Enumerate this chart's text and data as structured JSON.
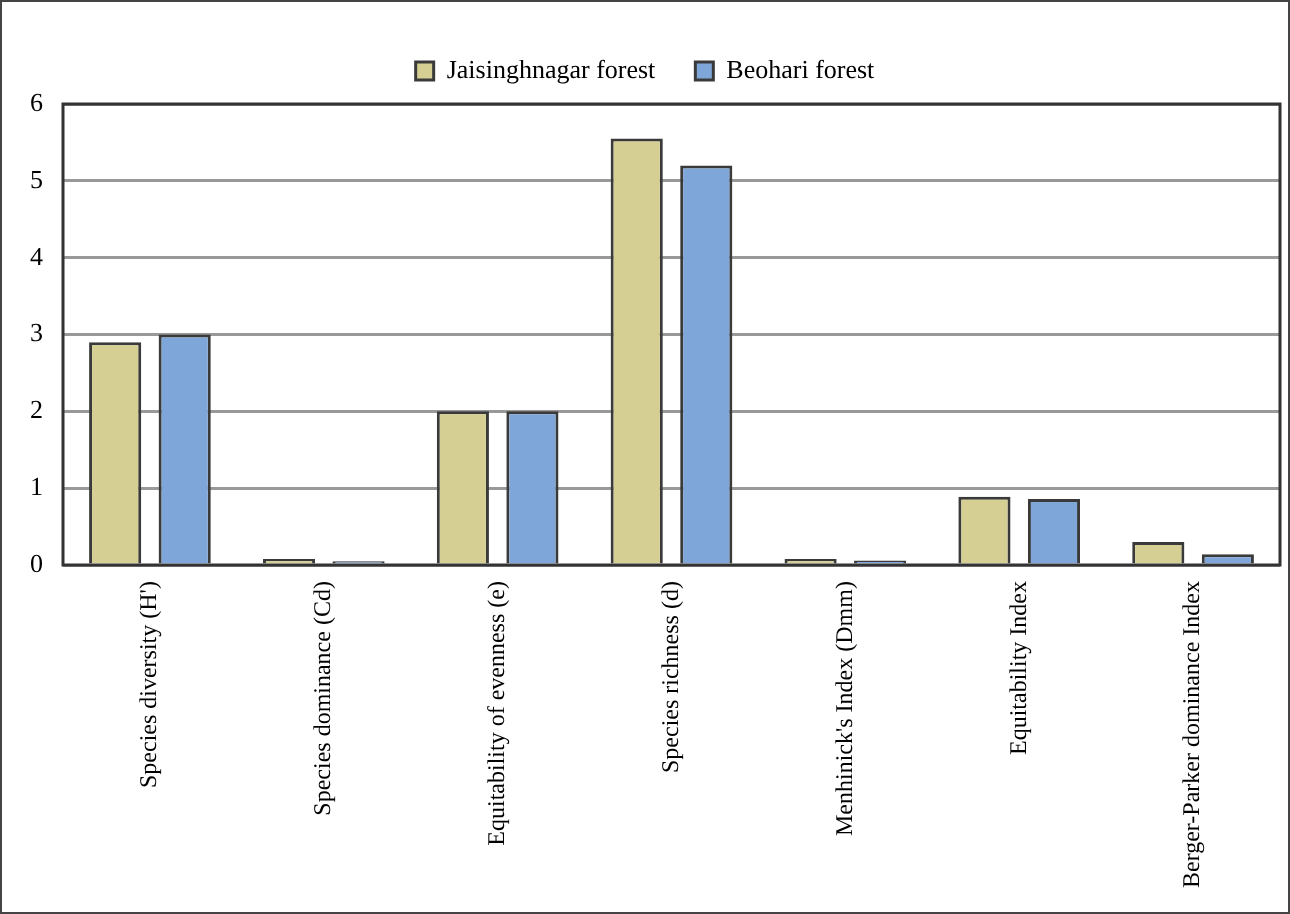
{
  "chart_data": {
    "type": "bar",
    "categories": [
      "Species diversity (H')",
      "Species dominance (Cd)",
      "Equitability of evenness (e)",
      "Species richness (d)",
      "Menhinick's Index (Dmm)",
      "Equitability Index",
      "Berger-Parker dominance Index"
    ],
    "series": [
      {
        "name": "Jaisinghnagar forest",
        "color": "#d6cf93",
        "values": [
          2.9,
          0.08,
          2.0,
          5.55,
          0.08,
          0.89,
          0.3
        ]
      },
      {
        "name": "Beohari forest",
        "color": "#7fa6d8",
        "values": [
          3.0,
          0.05,
          2.0,
          5.2,
          0.06,
          0.86,
          0.14
        ]
      }
    ],
    "ylim": [
      0,
      6
    ],
    "yticks": [
      0,
      1,
      2,
      3,
      4,
      5,
      6
    ],
    "grid": "y",
    "legend": "top"
  }
}
